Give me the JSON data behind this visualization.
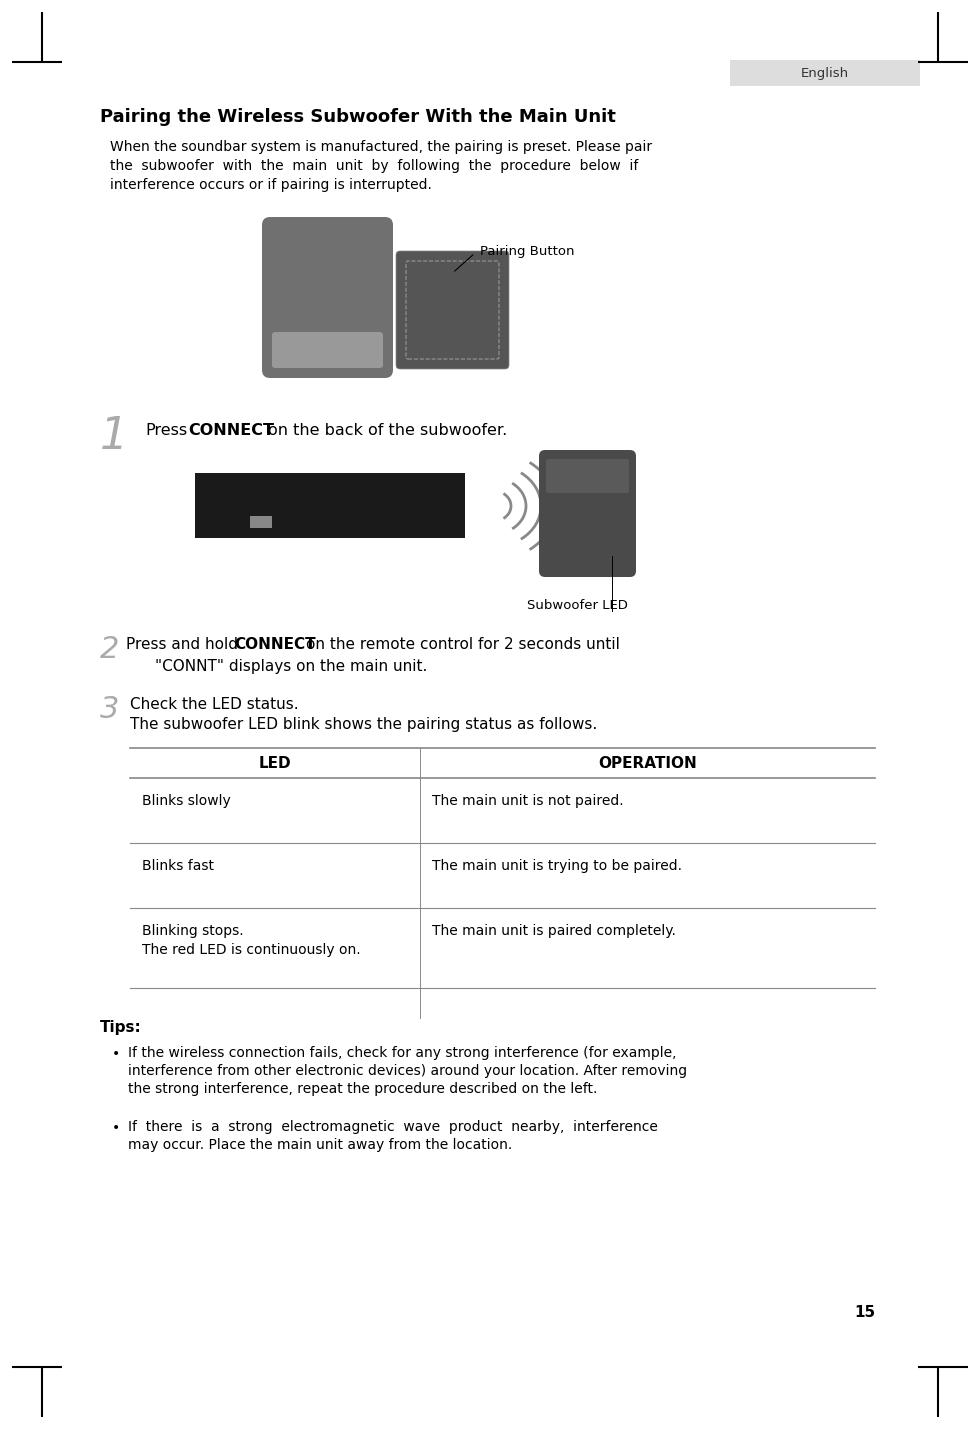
{
  "bg_color": "#ffffff",
  "title": "Pairing the Wireless Subwoofer With the Main Unit",
  "english_label": "English",
  "page_number": "15",
  "intro_line1": "When the soundbar system is manufactured, the pairing is preset. Please pair",
  "intro_line2": "the  subwoofer  with  the  main  unit  by  following  the  procedure  below  if",
  "intro_line3": "interference occurs or if pairing is interrupted.",
  "pairing_button_label": "Pairing Button",
  "step1_number": "1",
  "step1_pre": "Press  ",
  "step1_bold": "CONNECT",
  "step1_post": "  on the back of the subwoofer.",
  "subwoofer_led_label": "Subwoofer LED",
  "step2_number": "2",
  "step2_pre": "Press and hold  ",
  "step2_bold": "CONNECT",
  "step2_post": "  on the remote control for 2 seconds until",
  "step2_line2": "\"CONNT\" displays on the main unit.",
  "step3_number": "3",
  "step3_line1": "Check the LED status.",
  "step3_line2": "The subwoofer LED blink shows the pairing status as follows.",
  "table_header_led": "LED",
  "table_header_op": "OPERATION",
  "table_rows": [
    [
      "Blinks slowly",
      "The main unit is not paired."
    ],
    [
      "Blinks fast",
      "The main unit is trying to be paired."
    ],
    [
      "Blinking stops.\nThe red LED is continuously on.",
      "The main unit is paired completely."
    ]
  ],
  "tips_title": "Tips:",
  "tip1_line1": "If the wireless connection fails, check for any strong interference (for example,",
  "tip1_line2": "interference from other electronic devices) around your location. After removing",
  "tip1_line3": "the strong interference, repeat the procedure described on the left.",
  "tip2_line1": "If  there  is  a  strong  electromagnetic  wave  product  nearby,  interference",
  "tip2_line2": "may occur. Place the main unit away from the location.",
  "table_line_color": "#888888",
  "corner_mark_color": "#000000",
  "english_box_color": "#dddddd",
  "step_num_color": "#aaaaaa",
  "text_color": "#000000"
}
